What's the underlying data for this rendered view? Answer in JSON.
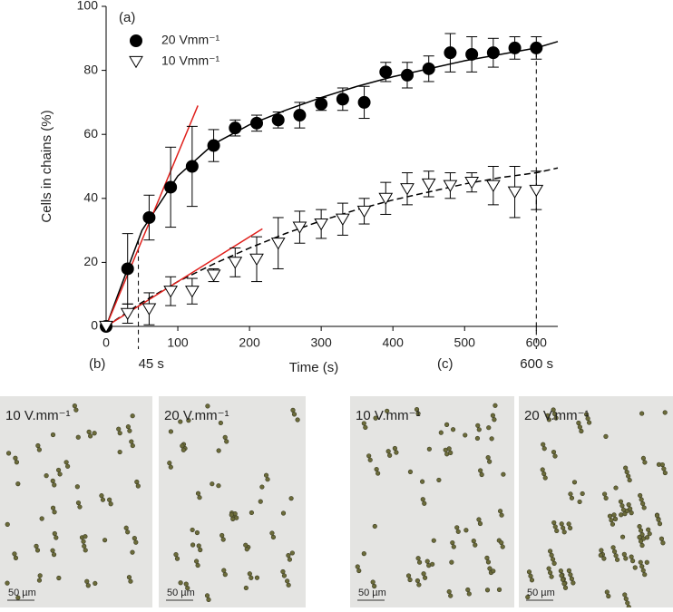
{
  "chart_data": {
    "type": "scatter",
    "panel_label": "(a)",
    "xlabel": "Time (s)",
    "ylabel": "Cells in chains (%)",
    "xlim": [
      0,
      630
    ],
    "ylim": [
      0,
      100
    ],
    "xticks": [
      0,
      100,
      200,
      300,
      400,
      500,
      600
    ],
    "yticks": [
      0,
      20,
      40,
      60,
      80,
      100
    ],
    "legend": "upper left",
    "x": [
      0,
      30,
      60,
      90,
      120,
      150,
      180,
      210,
      240,
      270,
      300,
      330,
      360,
      390,
      420,
      450,
      480,
      510,
      540,
      570,
      600
    ],
    "series": [
      {
        "name": "20 Vmm⁻¹",
        "color": "#000000",
        "marker": "circle",
        "values": [
          0,
          18,
          34,
          43.5,
          50,
          56.5,
          62,
          63.5,
          64.5,
          66,
          69.5,
          71,
          70,
          79.5,
          78.5,
          80.5,
          85.5,
          85,
          85.5,
          87,
          87
        ],
        "errors": [
          0,
          11,
          7,
          12.5,
          12.5,
          5,
          2.5,
          2.5,
          2.5,
          4,
          2,
          3.5,
          5,
          3,
          4,
          4,
          6,
          5.5,
          4.5,
          3.5,
          3.5
        ]
      },
      {
        "name": "10 Vmm⁻¹",
        "color": "#ffffff",
        "marker": "triangle-down",
        "values": [
          0,
          4,
          5.5,
          11,
          11,
          16,
          20,
          21,
          26,
          31,
          32,
          33.5,
          36,
          40,
          43,
          44.5,
          44,
          45,
          44,
          42,
          42.5
        ],
        "errors": [
          0,
          3,
          5,
          4.5,
          4,
          2,
          4.5,
          7,
          8,
          5,
          4.5,
          5,
          4,
          5,
          5,
          4,
          4,
          3,
          6,
          8,
          6
        ]
      }
    ],
    "fits": [
      {
        "color": "#000000",
        "dashed": false,
        "x": [
          0,
          50,
          100,
          150,
          200,
          250,
          300,
          350,
          400,
          450,
          500,
          550,
          600,
          630
        ],
        "values": [
          0,
          30,
          47,
          57,
          63,
          67.5,
          71.5,
          75,
          78,
          80.5,
          83,
          85,
          87,
          89
        ]
      },
      {
        "color": "#000000",
        "dashed": true,
        "x": [
          0,
          50,
          100,
          150,
          200,
          250,
          300,
          350,
          400,
          450,
          500,
          550,
          600,
          630
        ],
        "values": [
          0,
          7.5,
          14,
          19.5,
          24.5,
          29,
          33,
          36.5,
          39.5,
          42,
          44.5,
          46.5,
          48,
          49.5
        ]
      }
    ],
    "tangents": [
      {
        "color": "#e0201c",
        "x": [
          0,
          128
        ],
        "values": [
          0,
          69
        ]
      },
      {
        "color": "#e0201c",
        "x": [
          0,
          218
        ],
        "values": [
          0,
          30.5
        ]
      }
    ],
    "markers": [
      {
        "x": 45,
        "y_top": 27,
        "label": "45 s"
      },
      {
        "x": 600,
        "y_top": 88,
        "label": "600 s"
      }
    ]
  },
  "panels": [
    {
      "label": "(b)",
      "images": [
        {
          "field": "10 V.mm⁻¹",
          "scale": "50 µm"
        },
        {
          "field": "20 V.mm⁻¹",
          "scale": "50 µm"
        }
      ]
    },
    {
      "label": "(c)",
      "images": [
        {
          "field": "10 V.mm⁻¹",
          "scale": "50 µm"
        },
        {
          "field": "20 V.mm⁻¹",
          "scale": "50 µm"
        }
      ]
    }
  ]
}
